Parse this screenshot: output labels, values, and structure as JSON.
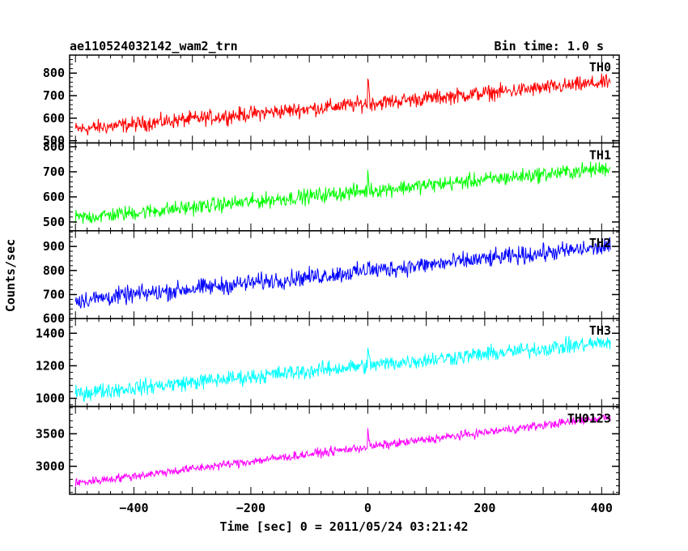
{
  "chart_data": {
    "type": "line",
    "title": "ae110524032142_wam2_trn",
    "subtitle": "Bin time: 1.0 s",
    "xlabel": "Time [sec] 0 = 2011/05/24 03:21:42",
    "ylabel": "Counts/sec",
    "xlim": [
      -510,
      430
    ],
    "xticks": [
      -400,
      -200,
      0,
      200,
      400
    ],
    "series": [
      {
        "name": "TH0",
        "color": "#ff0000",
        "ylim": [
          490,
          880
        ],
        "yticks": [
          500,
          600,
          700,
          800
        ],
        "start": 550,
        "end": 760,
        "noise": 28,
        "spike": 120
      },
      {
        "name": "TH1",
        "color": "#00ff00",
        "ylim": [
          465,
          815
        ],
        "yticks": [
          500,
          600,
          700,
          800
        ],
        "start": 515,
        "end": 715,
        "noise": 25,
        "spike": 60
      },
      {
        "name": "TH2",
        "color": "#0000ff",
        "ylim": [
          600,
          965
        ],
        "yticks": [
          600,
          700,
          800,
          900
        ],
        "start": 675,
        "end": 900,
        "noise": 30,
        "spike": 60
      },
      {
        "name": "TH3",
        "color": "#00ffff",
        "ylim": [
          950,
          1490
        ],
        "yticks": [
          1000,
          1200,
          1400
        ],
        "start": 1030,
        "end": 1345,
        "noise": 40,
        "spike": 90
      },
      {
        "name": "TH0123",
        "color": "#ff00ff",
        "ylim": [
          2570,
          3920
        ],
        "yticks": [
          3000,
          3500
        ],
        "start": 2740,
        "end": 3760,
        "noise": 55,
        "spike": 230
      }
    ]
  }
}
